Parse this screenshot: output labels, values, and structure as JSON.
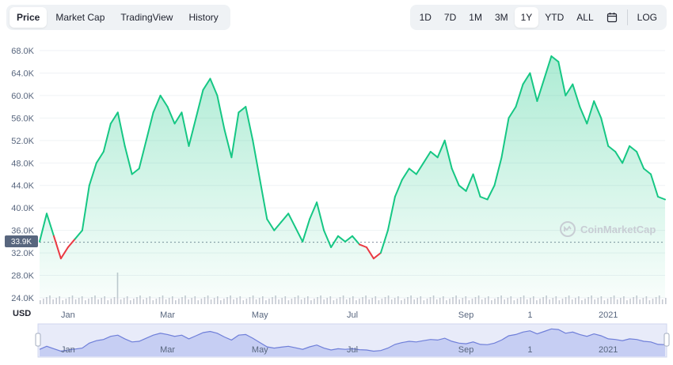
{
  "tabs": [
    "Price",
    "Market Cap",
    "TradingView",
    "History"
  ],
  "ranges": [
    "1D",
    "7D",
    "1M",
    "3M",
    "1Y",
    "YTD",
    "ALL"
  ],
  "active_range": "1Y",
  "log_label": "LOG",
  "calendar_icon": "calendar-icon",
  "watermark": "CoinMarketCap",
  "currency_label": "USD",
  "current_price_tag": "33.9K",
  "colors": {
    "up": "#16c784",
    "down": "#ea3943",
    "navigator": "#6f7fd9"
  },
  "chart_data": {
    "type": "line",
    "title": "",
    "xlabel": "",
    "ylabel": "",
    "ylim": [
      24000,
      70000
    ],
    "yticks": [
      "68.0K",
      "64.0K",
      "60.0K",
      "56.0K",
      "52.0K",
      "48.0K",
      "44.0K",
      "40.0K",
      "36.0K",
      "32.0K",
      "28.0K",
      "24.0K"
    ],
    "ytick_values": [
      68000,
      64000,
      60000,
      56000,
      52000,
      48000,
      44000,
      40000,
      36000,
      32000,
      28000,
      24000
    ],
    "baseline": 33900,
    "xticks": [
      "Jan",
      "Mar",
      "May",
      "Jul",
      "Sep",
      "1",
      "2021"
    ],
    "xtick_index": [
      4,
      18,
      31,
      44,
      60,
      69,
      80
    ],
    "values": [
      34000,
      39000,
      35000,
      31000,
      33000,
      34500,
      36000,
      44000,
      48000,
      50000,
      55000,
      57000,
      51000,
      46000,
      47000,
      52000,
      57000,
      60000,
      58000,
      55000,
      57000,
      51000,
      56000,
      61000,
      63000,
      60000,
      54000,
      49000,
      57000,
      58000,
      52000,
      45000,
      38000,
      36000,
      37500,
      39000,
      36500,
      34000,
      38000,
      41000,
      36000,
      33000,
      35000,
      34000,
      35000,
      33500,
      33000,
      31000,
      32000,
      36000,
      42000,
      45000,
      47000,
      46000,
      48000,
      50000,
      49000,
      52000,
      47000,
      44000,
      43000,
      46000,
      42000,
      41500,
      44000,
      49000,
      56000,
      58000,
      62000,
      64000,
      59000,
      63000,
      67000,
      66000,
      60000,
      62000,
      58000,
      55000,
      59000,
      56000,
      51000,
      50000,
      48000,
      51000,
      50000,
      47000,
      46000,
      42000,
      41500
    ]
  }
}
